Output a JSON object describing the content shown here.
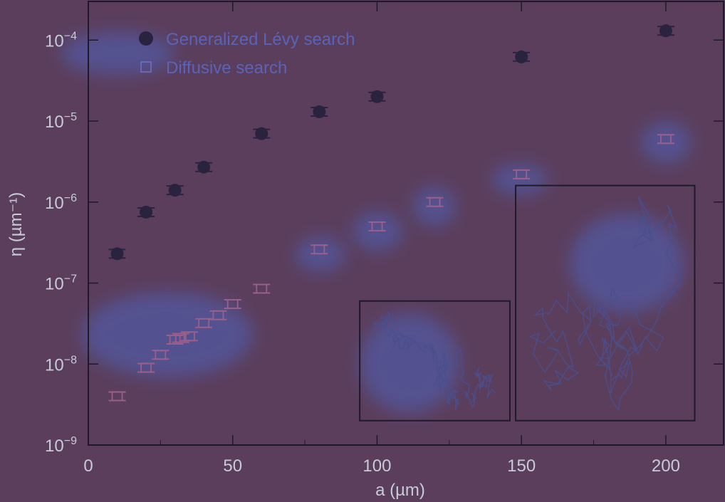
{
  "chart_data": {
    "type": "scatter",
    "xlabel": "a (µm)",
    "ylabel": "η (µm⁻¹)",
    "xlim": [
      0,
      220
    ],
    "ylim": [
      1e-09,
      0.0003
    ],
    "yscale": "log",
    "x_ticks": [
      0,
      50,
      100,
      150,
      200
    ],
    "x_tick_labels": [
      "0",
      "50",
      "100",
      "150",
      "200"
    ],
    "y_ticks": [
      1e-09,
      1e-08,
      1e-07,
      1e-06,
      1e-05,
      0.0001
    ],
    "y_tick_labels": [
      {
        "base": "10",
        "exp": "−9"
      },
      {
        "base": "10",
        "exp": "−8"
      },
      {
        "base": "10",
        "exp": "−7"
      },
      {
        "base": "10",
        "exp": "−6"
      },
      {
        "base": "10",
        "exp": "−5"
      },
      {
        "base": "10",
        "exp": "−4"
      }
    ],
    "legend_position": "top-left",
    "series": [
      {
        "name": "Generalized Lévy search",
        "marker": "filled-circle",
        "x": [
          10,
          20,
          30,
          40,
          60,
          80,
          100,
          150,
          200
        ],
        "y": [
          2.3e-07,
          7.5e-07,
          1.4e-06,
          2.7e-06,
          7e-06,
          1.3e-05,
          2e-05,
          6.2e-05,
          0.00013
        ]
      },
      {
        "name": "Diffusive search",
        "marker": "open-square",
        "x": [
          10,
          20,
          25,
          30,
          32,
          35,
          40,
          45,
          50,
          60,
          80,
          100,
          120,
          150,
          200
        ],
        "y": [
          4e-09,
          9e-09,
          1.3e-08,
          2e-08,
          2.1e-08,
          2.2e-08,
          3.2e-08,
          4e-08,
          5.5e-08,
          8.5e-08,
          2.6e-07,
          5e-07,
          1e-06,
          2.2e-06,
          6e-06
        ]
      }
    ],
    "insets": [
      {
        "description": "diffusive trajectory",
        "x_range": [
          94,
          146
        ],
        "y_range": [
          2e-09,
          6e-08
        ]
      },
      {
        "description": "Lévy trajectory",
        "x_range": [
          148,
          210
        ],
        "y_range": [
          2e-09,
          1.6e-06
        ]
      }
    ]
  },
  "colors": {
    "background": "#5b3e5c",
    "axis": "#1e1a2a",
    "text": "#c7cbd6",
    "levy_marker": "#2a2340",
    "diffusive_marker": "#9b5f8c",
    "legend_text": "#5a63b8",
    "highlight": "#4d6bd0"
  }
}
